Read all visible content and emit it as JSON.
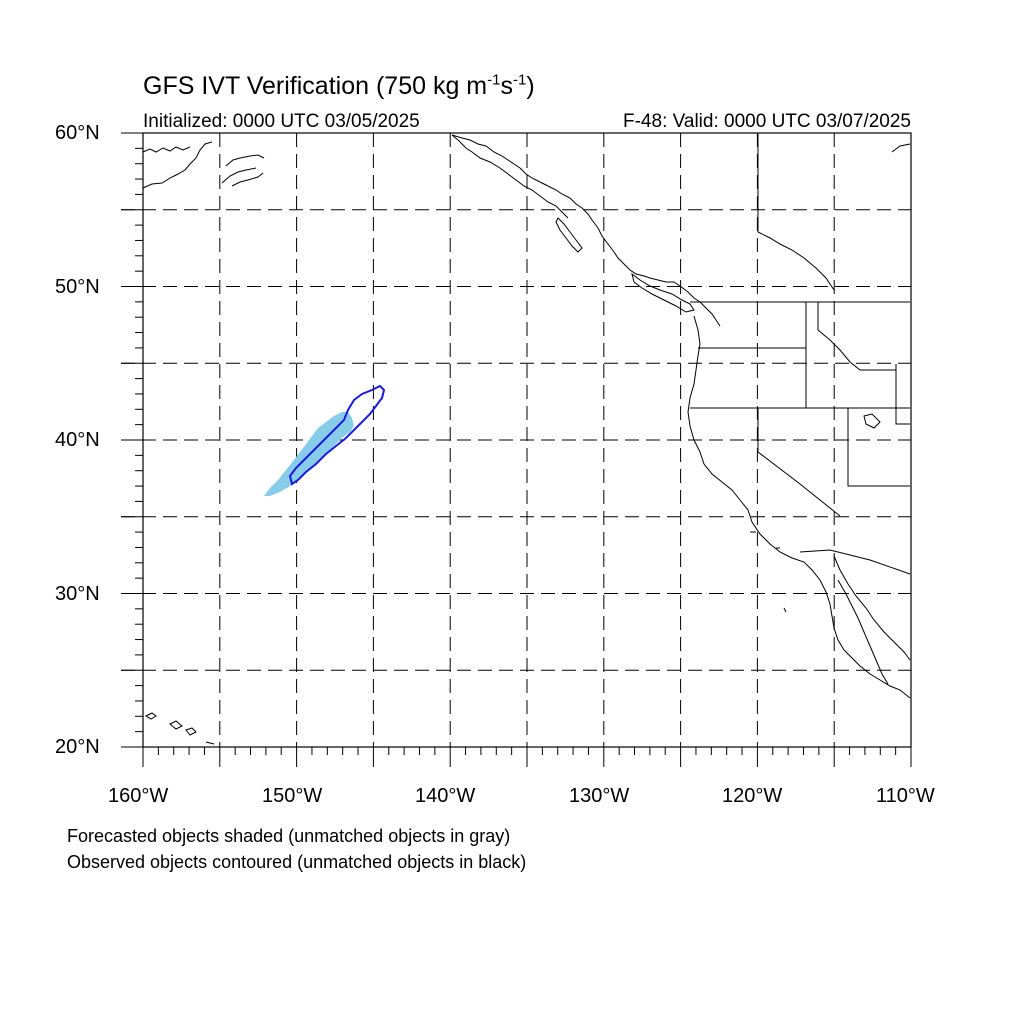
{
  "title": {
    "main": "GFS IVT Verification (750 kg m",
    "sup1": "-1",
    "mid": "s",
    "sup2": "-1",
    "end": ")"
  },
  "subtitle": {
    "initialized": "Initialized: 0000 UTC 03/05/2025",
    "valid": "F-48: Valid: 0000 UTC 03/07/2025"
  },
  "lat_labels": [
    "60°N",
    "50°N",
    "40°N",
    "30°N",
    "20°N"
  ],
  "lon_labels": [
    "160°W",
    "150°W",
    "140°W",
    "130°W",
    "120°W",
    "110°W"
  ],
  "notes": {
    "forecast": "Forecasted objects shaded (unmatched objects in gray)",
    "observed": "Observed objects contoured (unmatched objects in black)"
  },
  "colors": {
    "forecast_fill": "#87cdea",
    "observed_contour": "#1a1adc",
    "coastline": "#000000",
    "grid": "#000000"
  }
}
